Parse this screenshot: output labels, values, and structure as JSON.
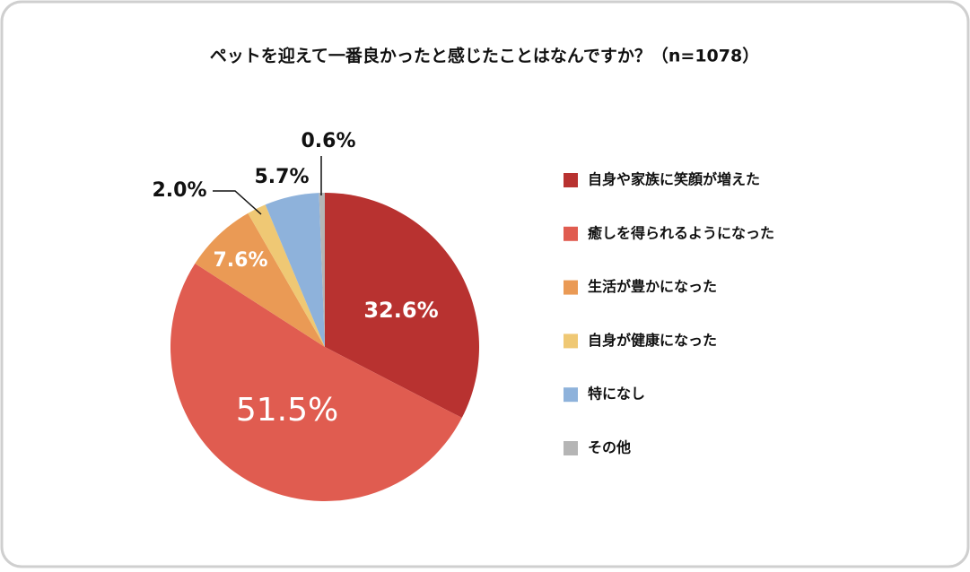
{
  "chart_data": {
    "type": "pie",
    "title": "ペットを迎えて一番良かったと感じたことはなんですか？（n=1078）",
    "categories": [
      "自身や家族に笑顔が増えた",
      "癒しを得られるようになった",
      "生活が豊かになった",
      "自身が健康になった",
      "特になし",
      "その他"
    ],
    "values": [
      32.6,
      51.5,
      7.6,
      2.0,
      5.7,
      0.6
    ],
    "value_labels": [
      "32.6%",
      "51.5%",
      "7.6%",
      "2.0%",
      "5.7%",
      "0.6%"
    ],
    "colors": [
      "#b83230",
      "#e05c50",
      "#ea9a55",
      "#efc874",
      "#8eb2db",
      "#b5b5b5"
    ],
    "legend": "right"
  }
}
